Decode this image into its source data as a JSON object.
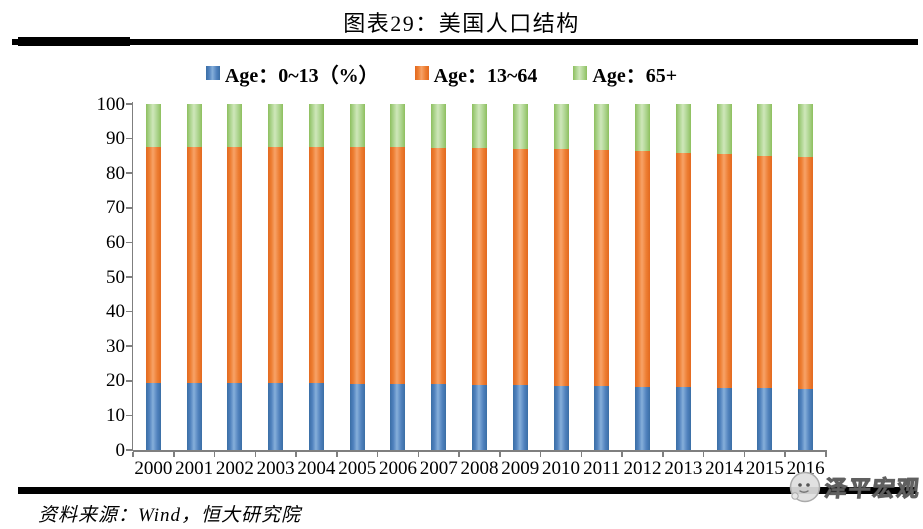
{
  "title": "图表29：美国人口结构",
  "legend": {
    "items": [
      {
        "label": "Age：0~13（%）"
      },
      {
        "label": "Age：13~64"
      },
      {
        "label": "Age：65+"
      }
    ]
  },
  "footer": {
    "source": "资料来源：Wind，恒大研究院"
  },
  "watermark": {
    "text": "泽平宏观",
    "icon": "face-logo-icon"
  },
  "chart_data": {
    "type": "bar",
    "stacked": true,
    "title": "图表29：美国人口结构",
    "categories": [
      "2000",
      "2001",
      "2002",
      "2003",
      "2004",
      "2005",
      "2006",
      "2007",
      "2008",
      "2009",
      "2010",
      "2011",
      "2012",
      "2013",
      "2014",
      "2015",
      "2016"
    ],
    "series": [
      {
        "name": "Age：0~13（%）",
        "color": "#4f81bd",
        "edge_color": "#3a6ea5",
        "highlight_color": "#86afda",
        "values": [
          19.5,
          19.5,
          19.5,
          19.4,
          19.3,
          19.2,
          19.1,
          19.0,
          18.9,
          18.8,
          18.6,
          18.4,
          18.2,
          18.1,
          17.9,
          17.8,
          17.7
        ]
      },
      {
        "name": "Age：13~64",
        "color": "#ed7d31",
        "edge_color": "#e2691f",
        "highlight_color": "#f7a267",
        "values": [
          68.1,
          68.1,
          68.1,
          68.2,
          68.3,
          68.4,
          68.4,
          68.4,
          68.3,
          68.3,
          68.3,
          68.3,
          68.1,
          67.8,
          67.6,
          67.3,
          67.1
        ]
      },
      {
        "name": "Age：65+",
        "color": "#abd38c",
        "edge_color": "#8dbf5e",
        "highlight_color": "#cfe7ba",
        "values": [
          12.4,
          12.4,
          12.4,
          12.4,
          12.4,
          12.4,
          12.5,
          12.6,
          12.8,
          12.9,
          13.1,
          13.3,
          13.7,
          14.1,
          14.5,
          14.9,
          15.2
        ]
      }
    ],
    "ylim": [
      0,
      100
    ],
    "yticks": [
      0,
      10,
      20,
      30,
      40,
      50,
      60,
      70,
      80,
      90,
      100
    ],
    "xlabel": "",
    "ylabel": "",
    "grid": false,
    "legend_position": "top"
  }
}
